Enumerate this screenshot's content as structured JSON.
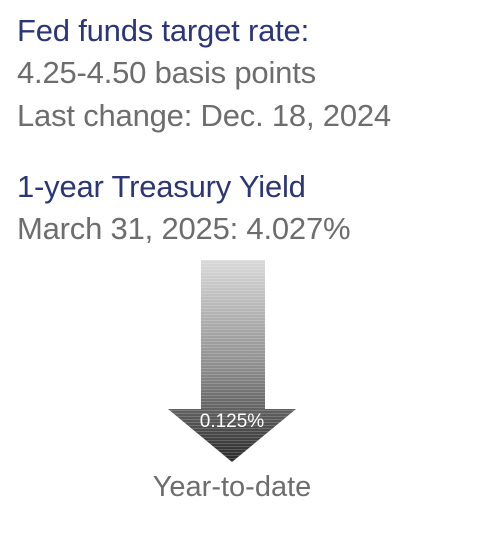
{
  "fed_funds": {
    "title": "Fed funds target rate:",
    "range": "4.25-4.50 basis points",
    "last_change": "Last change: Dec. 18, 2024"
  },
  "treasury": {
    "title": "1-year Treasury Yield",
    "value_line": "March 31, 2025: 4.027%"
  },
  "ytd_change": {
    "direction": "down",
    "value": "0.125%",
    "caption": "Year-to-date",
    "arrow_icon": "down-arrow-icon"
  },
  "colors": {
    "heading": "#2b3577",
    "body_text": "#6d6d6d",
    "arrow_top": "#d9d9d9",
    "arrow_bottom": "#2a2a2a"
  }
}
